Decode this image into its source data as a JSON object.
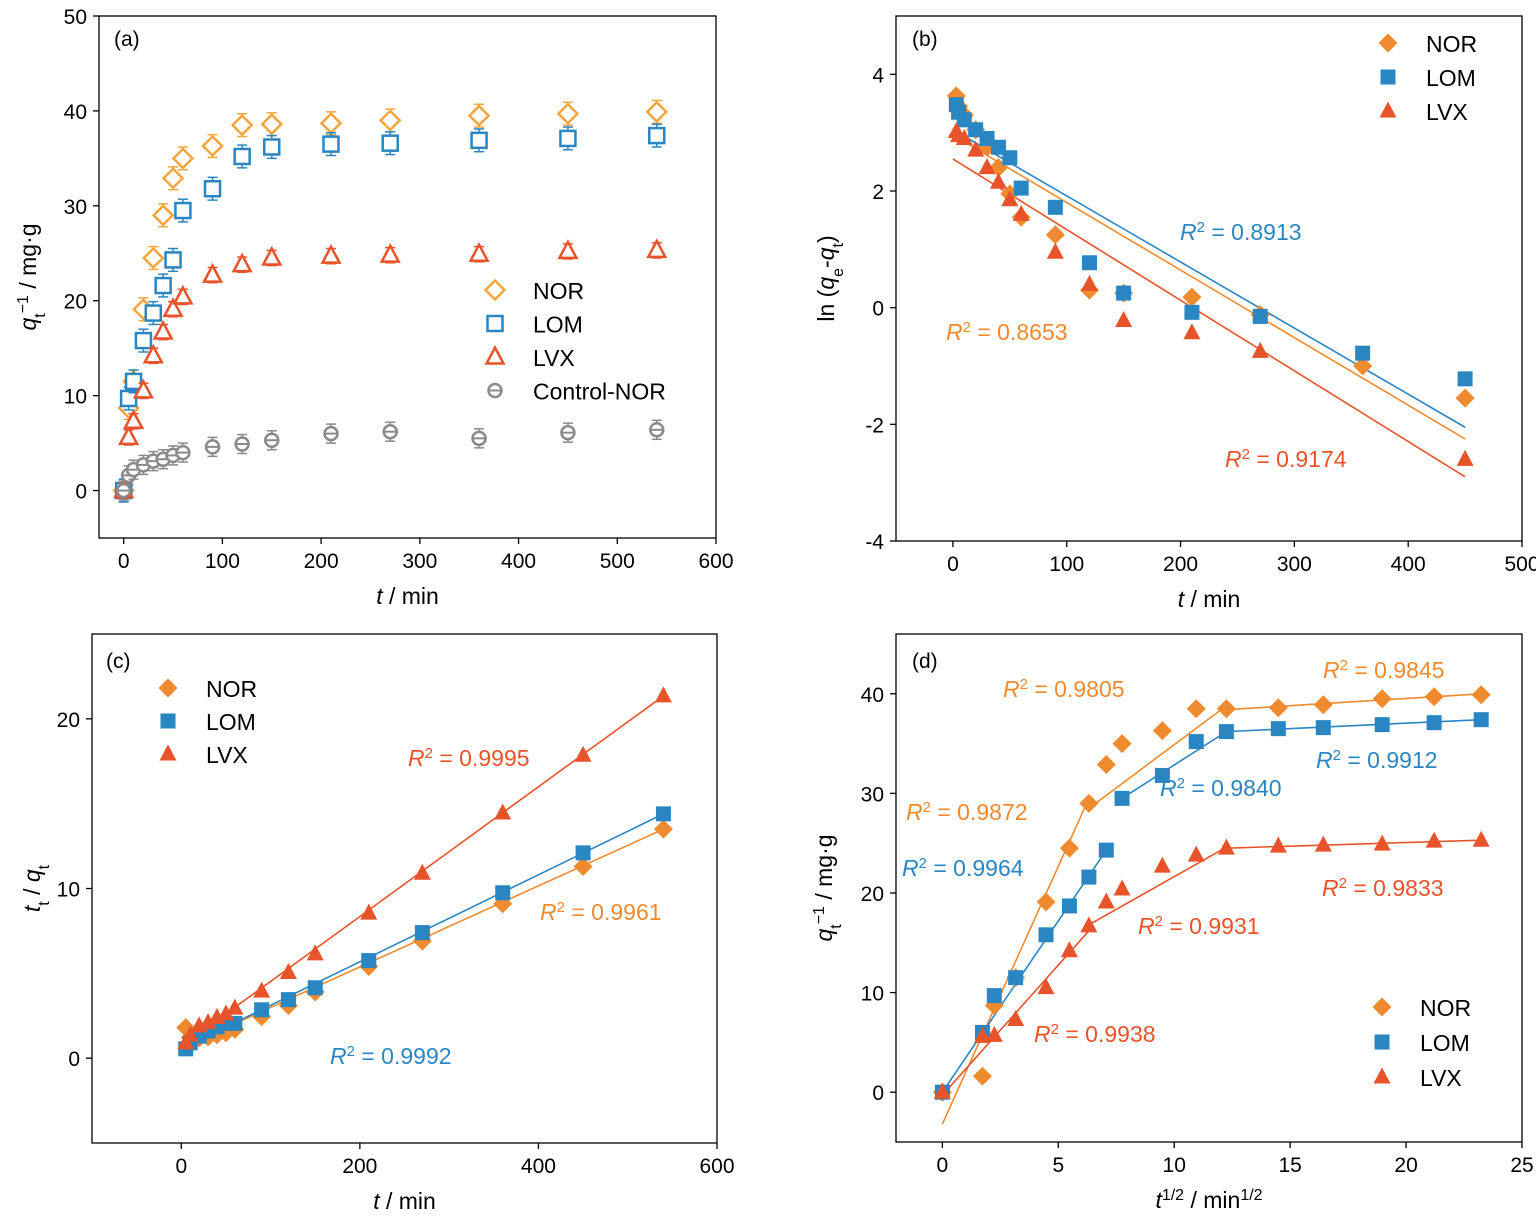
{
  "colors": {
    "NOR": "#F08A2E",
    "NOR_a": "#F3A53C",
    "LOM": "#2A86C3",
    "LVX": "#E8532A",
    "Control-NOR": "#8A8A8A"
  },
  "chart_data": [
    {
      "type": "scatter",
      "panel": "(a)",
      "xlabel": {
        "italic": "t",
        "rest": " / min"
      },
      "ylabel": {
        "italic": "q",
        "sub": "t",
        "rest": " / mg·g",
        "sup": "−1"
      },
      "xlim": [
        -25,
        600
      ],
      "ylim": [
        -5,
        50
      ],
      "xticks": [
        0,
        100,
        200,
        300,
        400,
        500,
        600
      ],
      "yticks": [
        0,
        10,
        20,
        30,
        40,
        50
      ],
      "legend_position": "center-right",
      "series": [
        {
          "name": "NOR",
          "marker": "diamond-open",
          "color": "#F3A53C",
          "x": [
            0,
            5,
            10,
            20,
            30,
            40,
            50,
            60,
            90,
            120,
            150,
            210,
            270,
            360,
            450,
            540
          ],
          "y": [
            0,
            8.7,
            11.5,
            19.1,
            24.5,
            29,
            32.9,
            35,
            36.3,
            38.5,
            38.6,
            38.7,
            39,
            39.5,
            39.7,
            39.9
          ],
          "err": [
            1.2,
            1.2,
            1.2,
            1.2,
            1.2,
            1.2,
            1.2,
            1.2,
            1.2,
            1.2,
            1.2,
            1.2,
            1.2,
            1.2,
            1.2,
            1.2
          ]
        },
        {
          "name": "LOM",
          "marker": "square-open",
          "color": "#2A86C3",
          "x": [
            0,
            5,
            10,
            20,
            30,
            40,
            50,
            60,
            90,
            120,
            150,
            210,
            270,
            360,
            450,
            540
          ],
          "y": [
            0,
            9.7,
            11.5,
            15.8,
            18.7,
            21.6,
            24.3,
            29.5,
            31.8,
            35.2,
            36.2,
            36.5,
            36.6,
            36.9,
            37.1,
            37.4
          ],
          "err": [
            1.2,
            1.2,
            1.2,
            1.2,
            1.2,
            1.2,
            1.2,
            1.2,
            1.2,
            1.2,
            1.2,
            1.2,
            1.2,
            1.2,
            1.2,
            1.2
          ]
        },
        {
          "name": "LVX",
          "marker": "triangle-open",
          "color": "#E8532A",
          "x": [
            0,
            5,
            10,
            20,
            30,
            40,
            50,
            60,
            90,
            120,
            150,
            210,
            270,
            360,
            450,
            540
          ],
          "y": [
            0,
            5.6,
            7.3,
            10.5,
            14.2,
            16.7,
            19.1,
            20.4,
            22.7,
            23.8,
            24.5,
            24.7,
            24.8,
            24.9,
            25.2,
            25.3
          ],
          "err": [
            0.8,
            0.8,
            0.8,
            0.8,
            0.8,
            0.8,
            0.8,
            0.8,
            0.8,
            0.8,
            0.8,
            0.8,
            0.8,
            0.8,
            0.8,
            0.8
          ]
        },
        {
          "name": "Control-NOR",
          "marker": "circle-open",
          "color": "#8A8A8A",
          "x": [
            0,
            5,
            10,
            20,
            30,
            40,
            50,
            60,
            90,
            120,
            150,
            210,
            270,
            360,
            450,
            540
          ],
          "y": [
            0,
            1.6,
            2.2,
            2.7,
            3.1,
            3.3,
            3.7,
            4,
            4.6,
            4.9,
            5.3,
            6,
            6.2,
            5.5,
            6.1,
            6.4
          ],
          "err": [
            1,
            1,
            1,
            1,
            1,
            1,
            1,
            1,
            1,
            1,
            1,
            1,
            1,
            1,
            1,
            1
          ]
        }
      ]
    },
    {
      "type": "scatter",
      "panel": "(b)",
      "xlabel": {
        "italic": "t",
        "rest": " / min"
      },
      "ylabel": {
        "pre": "ln (",
        "italic1": "q",
        "sub1": "e",
        "mid": "-",
        "italic2": "q",
        "sub2": "t",
        "post": ")"
      },
      "xlim": [
        -50,
        500
      ],
      "ylim": [
        -4,
        5
      ],
      "xticks": [
        0,
        100,
        200,
        300,
        400,
        500
      ],
      "yticks": [
        -4,
        -2,
        0,
        2,
        4
      ],
      "legend_position": "top-right",
      "series": [
        {
          "name": "NOR",
          "marker": "diamond",
          "color": "#F08A2E",
          "x": [
            3,
            5,
            10,
            20,
            30,
            40,
            50,
            60,
            90,
            120,
            150,
            210,
            270,
            360,
            450
          ],
          "y": [
            3.63,
            3.45,
            3.3,
            3.05,
            2.75,
            2.4,
            1.95,
            1.55,
            1.25,
            0.3,
            0.25,
            0.18,
            -0.12,
            -1.0,
            -1.55
          ],
          "fit": {
            "x": [
              0,
              450
            ],
            "y": [
              2.96,
              -2.25
            ],
            "r2_label": "0.8653"
          }
        },
        {
          "name": "LOM",
          "marker": "square",
          "color": "#2A86C3",
          "x": [
            3,
            5,
            10,
            20,
            30,
            40,
            50,
            60,
            90,
            120,
            150,
            210,
            270,
            360,
            450
          ],
          "y": [
            3.48,
            3.35,
            3.22,
            3.05,
            2.9,
            2.75,
            2.57,
            2.05,
            1.72,
            0.77,
            0.25,
            -0.08,
            -0.15,
            -0.78,
            -1.22
          ],
          "fit": {
            "x": [
              0,
              450
            ],
            "y": [
              3.05,
              -2.05
            ],
            "r2_label": "0.8913"
          }
        },
        {
          "name": "LVX",
          "marker": "triangle",
          "color": "#E8532A",
          "x": [
            3,
            5,
            10,
            20,
            30,
            40,
            50,
            60,
            90,
            120,
            150,
            210,
            270,
            450
          ],
          "y": [
            3.02,
            2.95,
            2.9,
            2.7,
            2.4,
            2.15,
            1.85,
            1.6,
            0.95,
            0.4,
            -0.22,
            -0.43,
            -0.75,
            -2.6
          ],
          "fit": {
            "x": [
              0,
              450
            ],
            "y": [
              2.55,
              -2.9
            ],
            "r2_label": "0.9174"
          }
        }
      ]
    },
    {
      "type": "scatter",
      "panel": "(c)",
      "xlabel": {
        "italic": "t",
        "rest": " / min"
      },
      "ylabel": {
        "italic": "t",
        "rest": " / ",
        "italic2": "q",
        "sub": "t"
      },
      "xlim": [
        -100,
        600
      ],
      "ylim": [
        -5,
        25
      ],
      "xticks": [
        0,
        200,
        400,
        600
      ],
      "yticks": [
        0,
        10,
        20
      ],
      "legend_position": "top-left",
      "series": [
        {
          "name": "NOR",
          "marker": "diamond",
          "color": "#F08A2E",
          "x": [
            5,
            10,
            20,
            30,
            40,
            50,
            60,
            90,
            120,
            150,
            210,
            270,
            360,
            450,
            540
          ],
          "y": [
            1.8,
            1.2,
            1.2,
            1.25,
            1.38,
            1.5,
            1.7,
            2.45,
            3.1,
            3.9,
            5.4,
            6.9,
            9.1,
            11.3,
            13.5
          ],
          "fit": {
            "x": [
              0,
              540
            ],
            "y": [
              0.6,
              13.5
            ],
            "r2_label": "0.9961"
          }
        },
        {
          "name": "LOM",
          "marker": "square",
          "color": "#2A86C3",
          "x": [
            5,
            10,
            20,
            30,
            40,
            50,
            60,
            90,
            120,
            150,
            210,
            270,
            360,
            450,
            540
          ],
          "y": [
            0.55,
            0.9,
            1.3,
            1.6,
            1.85,
            2.05,
            2.05,
            2.85,
            3.45,
            4.15,
            5.75,
            7.4,
            9.75,
            12.1,
            14.4
          ],
          "fit": {
            "x": [
              0,
              540
            ],
            "y": [
              0.55,
              14.4
            ],
            "r2_label": "0.9992"
          }
        },
        {
          "name": "LVX",
          "marker": "triangle",
          "color": "#E8532A",
          "x": [
            5,
            10,
            20,
            30,
            40,
            50,
            60,
            90,
            120,
            150,
            210,
            270,
            360,
            450,
            540
          ],
          "y": [
            0.9,
            1.35,
            1.9,
            2.1,
            2.4,
            2.6,
            2.95,
            3.95,
            5.05,
            6.15,
            8.55,
            10.9,
            14.45,
            17.85,
            21.35
          ],
          "fit": {
            "x": [
              0,
              540
            ],
            "y": [
              0.7,
              21.35
            ],
            "r2_label": "0.9995"
          }
        }
      ]
    },
    {
      "type": "scatter",
      "panel": "(d)",
      "xlabel": {
        "italic": "t",
        "sup": "1/2",
        "rest": " / min",
        "sup2": "1/2"
      },
      "ylabel": {
        "italic": "q",
        "sub": "t",
        "rest": " / mg·g",
        "sup": "−1"
      },
      "xlim": [
        -2,
        25
      ],
      "ylim": [
        -5,
        46
      ],
      "xticks": [
        0,
        5,
        10,
        15,
        20,
        25
      ],
      "yticks": [
        0,
        10,
        20,
        30,
        40
      ],
      "legend_position": "bottom-right",
      "series": [
        {
          "name": "NOR",
          "marker": "diamond",
          "color": "#F08A2E",
          "x": [
            0,
            1.73,
            2.24,
            3.16,
            4.47,
            5.48,
            6.32,
            7.07,
            7.75,
            9.49,
            10.95,
            12.25,
            14.49,
            16.43,
            18.97,
            21.21,
            23.24
          ],
          "y": [
            0,
            1.6,
            8.7,
            11.5,
            19.1,
            24.5,
            29,
            32.9,
            35,
            36.3,
            38.5,
            38.5,
            38.6,
            38.9,
            39.5,
            39.7,
            39.9
          ],
          "fits": [
            {
              "x": [
                0,
                6.32
              ],
              "y": [
                -3.2,
                29.5
              ]
            },
            {
              "x": [
                6.32,
                12.25
              ],
              "y": [
                28.5,
                38.8
              ]
            },
            {
              "x": [
                12.25,
                23.24
              ],
              "y": [
                38.4,
                40.0
              ]
            }
          ],
          "r2_labels": [
            "0.9872",
            "0.9805",
            "0.9845"
          ]
        },
        {
          "name": "LOM",
          "marker": "square",
          "color": "#2A86C3",
          "x": [
            0,
            1.73,
            2.24,
            3.16,
            4.47,
            5.48,
            6.32,
            7.07,
            7.75,
            9.49,
            10.95,
            12.25,
            14.49,
            16.43,
            18.97,
            21.21,
            23.24
          ],
          "y": [
            0,
            6,
            9.7,
            11.5,
            15.8,
            18.7,
            21.6,
            24.3,
            29.5,
            31.8,
            35.2,
            36.2,
            36.5,
            36.6,
            36.9,
            37.1,
            37.4
          ],
          "fits": [
            {
              "x": [
                0,
                7.07
              ],
              "y": [
                0,
                24.3
              ]
            },
            {
              "x": [
                7.75,
                12.25
              ],
              "y": [
                29.5,
                36.2
              ]
            },
            {
              "x": [
                12.25,
                23.24
              ],
              "y": [
                36.2,
                37.4
              ]
            }
          ],
          "r2_labels": [
            "0.9964",
            "0.9840",
            "0.9912"
          ]
        },
        {
          "name": "LVX",
          "marker": "triangle",
          "color": "#E8532A",
          "x": [
            0,
            1.73,
            2.24,
            3.16,
            4.47,
            5.48,
            6.32,
            7.07,
            7.75,
            9.49,
            10.95,
            12.25,
            14.49,
            16.43,
            18.97,
            21.21,
            23.24
          ],
          "y": [
            0,
            5.6,
            5.7,
            7.3,
            10.5,
            14.2,
            16.7,
            19.1,
            20.4,
            22.7,
            23.8,
            24.5,
            24.7,
            24.8,
            24.9,
            25.2,
            25.3
          ],
          "fits": [
            {
              "x": [
                0,
                6.32
              ],
              "y": [
                -0.3,
                16.2
              ]
            },
            {
              "x": [
                6.32,
                12.25
              ],
              "y": [
                16.8,
                24.6
              ]
            },
            {
              "x": [
                12.25,
                23.24
              ],
              "y": [
                24.5,
                25.3
              ]
            }
          ],
          "r2_labels": [
            "0.9938",
            "0.9931",
            "0.9833"
          ]
        }
      ]
    }
  ]
}
